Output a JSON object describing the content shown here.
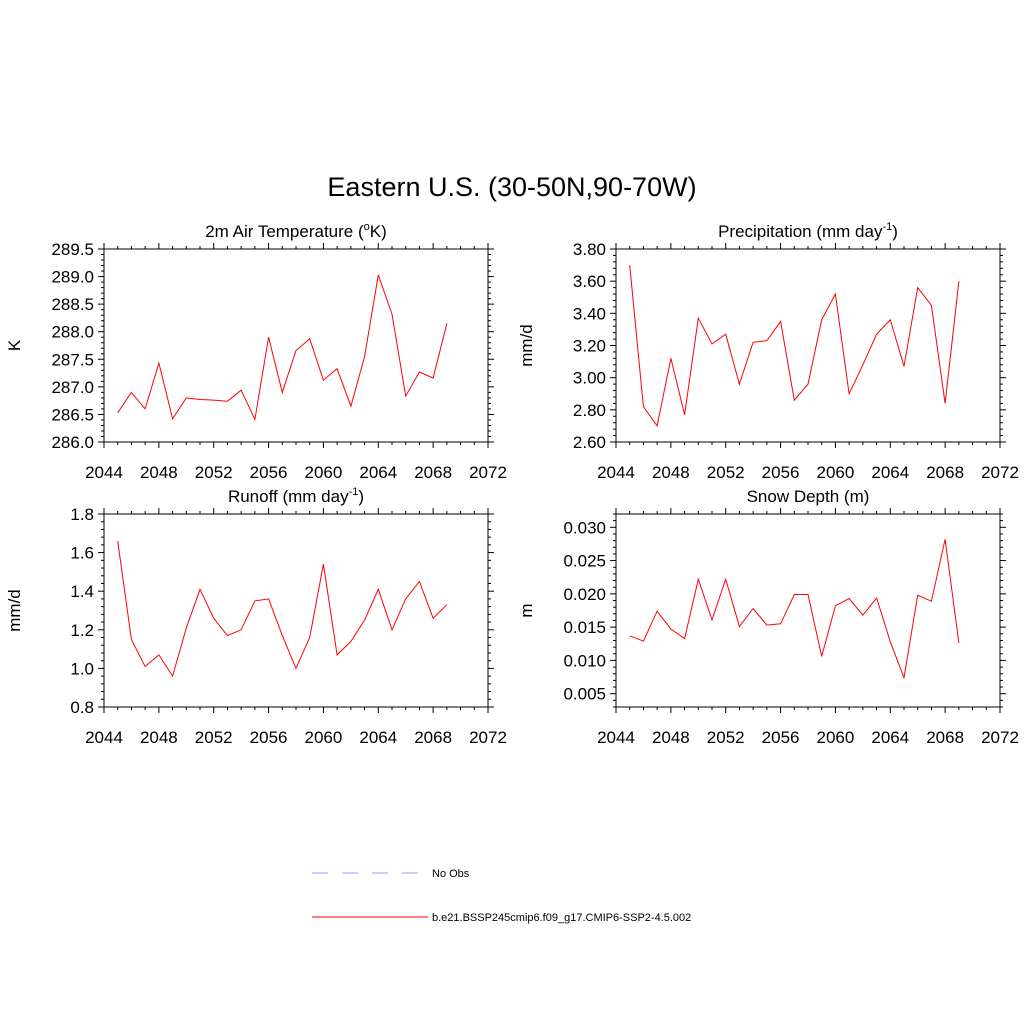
{
  "figure": {
    "title": "Eastern U.S. (30-50N,90-70W)"
  },
  "chart_data": [
    {
      "type": "line",
      "title": "2m Air Temperature (",
      "title_sup": "o",
      "title_after": "K)",
      "title_sup2": "",
      "title_end": "",
      "ylabel": "K",
      "xlim": [
        2044,
        2072
      ],
      "ylim": [
        286.0,
        289.5
      ],
      "xticks": [
        2044,
        2048,
        2052,
        2056,
        2060,
        2064,
        2068,
        2072
      ],
      "xtick_labels": [
        "2044",
        "2048",
        "2052",
        "2056",
        "2060",
        "2064",
        "2068",
        "2072"
      ],
      "yticks": [
        286.0,
        286.5,
        287.0,
        287.5,
        288.0,
        288.5,
        289.0,
        289.5
      ],
      "ytick_labels": [
        "286.0",
        "286.5",
        "287.0",
        "287.5",
        "288.0",
        "288.5",
        "289.0",
        "289.5"
      ],
      "x": [
        2045,
        2046,
        2047,
        2048,
        2049,
        2050,
        2051,
        2052,
        2053,
        2054,
        2055,
        2056,
        2057,
        2058,
        2059,
        2060,
        2061,
        2062,
        2063,
        2064,
        2065,
        2066,
        2067,
        2068,
        2069
      ],
      "series": [
        {
          "name": "b.e21.BSSP245cmip6.f09_g17.CMIP6-SSP2-4.5.002",
          "color": "#ff0000",
          "values": [
            286.53,
            286.9,
            286.6,
            287.43,
            286.42,
            286.8,
            286.77,
            286.76,
            286.74,
            286.94,
            286.41,
            287.9,
            286.9,
            287.66,
            287.87,
            287.12,
            287.33,
            286.65,
            287.55,
            289.03,
            288.32,
            286.83,
            287.27,
            287.16,
            288.15
          ]
        }
      ]
    },
    {
      "type": "line",
      "title": "Precipitation (mm day",
      "title_sup": "-1",
      "title_after": ")",
      "ylabel": "mm/d",
      "xlim": [
        2044,
        2072
      ],
      "ylim": [
        2.6,
        3.8
      ],
      "xticks": [
        2044,
        2048,
        2052,
        2056,
        2060,
        2064,
        2068,
        2072
      ],
      "xtick_labels": [
        "2044",
        "2048",
        "2052",
        "2056",
        "2060",
        "2064",
        "2068",
        "2072"
      ],
      "yticks": [
        2.6,
        2.8,
        3.0,
        3.2,
        3.4,
        3.6,
        3.8
      ],
      "ytick_labels": [
        "2.60",
        "2.80",
        "3.00",
        "3.20",
        "3.40",
        "3.60",
        "3.80"
      ],
      "x": [
        2045,
        2046,
        2047,
        2048,
        2049,
        2050,
        2051,
        2052,
        2053,
        2054,
        2055,
        2056,
        2057,
        2058,
        2059,
        2060,
        2061,
        2062,
        2063,
        2064,
        2065,
        2066,
        2067,
        2068,
        2069
      ],
      "series": [
        {
          "name": "b.e21.BSSP245cmip6.f09_g17.CMIP6-SSP2-4.5.002",
          "color": "#ff0000",
          "values": [
            3.7,
            2.82,
            2.7,
            3.12,
            2.77,
            3.37,
            3.21,
            3.27,
            2.96,
            3.22,
            3.23,
            3.35,
            2.86,
            2.96,
            3.36,
            3.52,
            2.9,
            3.08,
            3.27,
            3.36,
            3.07,
            3.56,
            3.45,
            2.84,
            3.6
          ]
        }
      ]
    },
    {
      "type": "line",
      "title": "Runoff (mm day",
      "title_sup": "-1",
      "title_after": ")",
      "ylabel": "mm/d",
      "xlim": [
        2044,
        2072
      ],
      "ylim": [
        0.8,
        1.8
      ],
      "xticks": [
        2044,
        2048,
        2052,
        2056,
        2060,
        2064,
        2068,
        2072
      ],
      "xtick_labels": [
        "2044",
        "2048",
        "2052",
        "2056",
        "2060",
        "2064",
        "2068",
        "2072"
      ],
      "yticks": [
        0.8,
        1.0,
        1.2,
        1.4,
        1.6,
        1.8
      ],
      "ytick_labels": [
        "0.8",
        "1.0",
        "1.2",
        "1.4",
        "1.6",
        "1.8"
      ],
      "x": [
        2045,
        2046,
        2047,
        2048,
        2049,
        2050,
        2051,
        2052,
        2053,
        2054,
        2055,
        2056,
        2057,
        2058,
        2059,
        2060,
        2061,
        2062,
        2063,
        2064,
        2065,
        2066,
        2067,
        2068,
        2069
      ],
      "series": [
        {
          "name": "b.e21.BSSP245cmip6.f09_g17.CMIP6-SSP2-4.5.002",
          "color": "#ff0000",
          "values": [
            1.66,
            1.15,
            1.01,
            1.07,
            0.96,
            1.21,
            1.41,
            1.26,
            1.17,
            1.2,
            1.35,
            1.36,
            1.17,
            1.0,
            1.16,
            1.54,
            1.07,
            1.14,
            1.25,
            1.41,
            1.2,
            1.36,
            1.45,
            1.26,
            1.33
          ]
        }
      ]
    },
    {
      "type": "line",
      "title": "Snow Depth (m)",
      "title_sup": "",
      "title_after": "",
      "ylabel": "m",
      "xlim": [
        2044,
        2072
      ],
      "ylim": [
        0.003,
        0.032
      ],
      "xticks": [
        2044,
        2048,
        2052,
        2056,
        2060,
        2064,
        2068,
        2072
      ],
      "xtick_labels": [
        "2044",
        "2048",
        "2052",
        "2056",
        "2060",
        "2064",
        "2068",
        "2072"
      ],
      "yticks": [
        0.005,
        0.01,
        0.015,
        0.02,
        0.025,
        0.03
      ],
      "ytick_labels": [
        "0.005",
        "0.010",
        "0.015",
        "0.020",
        "0.025",
        "0.030"
      ],
      "x": [
        2045,
        2046,
        2047,
        2048,
        2049,
        2050,
        2051,
        2052,
        2053,
        2054,
        2055,
        2056,
        2057,
        2058,
        2059,
        2060,
        2061,
        2062,
        2063,
        2064,
        2065,
        2066,
        2067,
        2068,
        2069
      ],
      "series": [
        {
          "name": "b.e21.BSSP245cmip6.f09_g17.CMIP6-SSP2-4.5.002",
          "color": "#ff0000",
          "values": [
            0.0137,
            0.0129,
            0.0174,
            0.0147,
            0.0133,
            0.0222,
            0.0161,
            0.0222,
            0.0151,
            0.0178,
            0.0153,
            0.0155,
            0.0199,
            0.0199,
            0.0106,
            0.0182,
            0.0193,
            0.0168,
            0.0194,
            0.0128,
            0.0074,
            0.0198,
            0.0189,
            0.0282,
            0.0126
          ]
        }
      ]
    }
  ],
  "legend": {
    "items": [
      {
        "label": "No Obs",
        "color": "#9999ff",
        "style": "dashed"
      },
      {
        "label": "b.e21.BSSP245cmip6.f09_g17.CMIP6-SSP2-4.5.002",
        "color": "#ff0000",
        "style": "solid"
      }
    ]
  }
}
